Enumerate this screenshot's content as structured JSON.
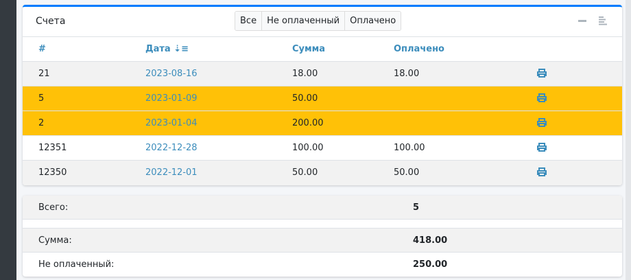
{
  "card": {
    "title": "Счета",
    "filters": [
      "Все",
      "Не оплаченный",
      "Оплачено"
    ],
    "columns": [
      "#",
      "Дата",
      "Сумма",
      "Оплачено"
    ],
    "rows": [
      {
        "id": "21",
        "date": "2023-08-16",
        "sum": "18.00",
        "paid": "18.00",
        "highlight": false
      },
      {
        "id": "5",
        "date": "2023-01-09",
        "sum": "50.00",
        "paid": "",
        "highlight": true
      },
      {
        "id": "2",
        "date": "2023-01-04",
        "sum": "200.00",
        "paid": "",
        "highlight": true
      },
      {
        "id": "12351",
        "date": "2022-12-28",
        "sum": "100.00",
        "paid": "100.00",
        "highlight": false
      },
      {
        "id": "12350",
        "date": "2022-12-01",
        "sum": "50.00",
        "paid": "50.00",
        "highlight": false
      }
    ]
  },
  "summary": {
    "total_label": "Всего:",
    "total": "5",
    "sum_label": "Сумма:",
    "sum": "418.00",
    "unpaid_label": "Не оплаченный:",
    "unpaid": "250.00"
  },
  "colors": {
    "accent": "#007bff",
    "link": "#3c8dbc",
    "highlight": "#ffc107"
  }
}
